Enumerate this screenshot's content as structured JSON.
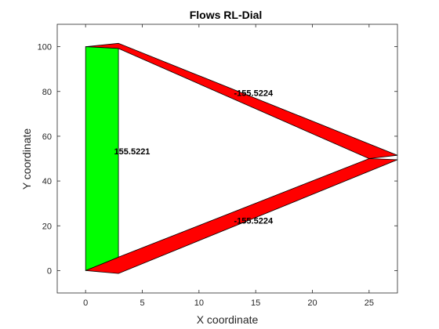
{
  "chart_data": {
    "type": "polygon-flow",
    "title": "Flows RL-Dial",
    "xlabel": "X coordinate",
    "ylabel": "Y coordinate",
    "xlim": [
      -2.5,
      27.5
    ],
    "ylim": [
      -10,
      110
    ],
    "xticks": [
      0,
      5,
      10,
      15,
      20,
      25
    ],
    "yticks": [
      0,
      20,
      40,
      60,
      80,
      100
    ],
    "grid": false,
    "flows": [
      {
        "id": "top-link",
        "color": "#ff0000",
        "label": "-155.5224",
        "label_pos": [
          14.8,
          78
        ],
        "polygon": [
          [
            0,
            100
          ],
          [
            2.9,
            101.5
          ],
          [
            27.5,
            51.5
          ],
          [
            25,
            50
          ],
          [
            2.9,
            99.2
          ]
        ]
      },
      {
        "id": "bottom-link",
        "color": "#ff0000",
        "label": "-155.5224",
        "label_pos": [
          14.8,
          21
        ],
        "polygon": [
          [
            0,
            0
          ],
          [
            2.9,
            -1.3
          ],
          [
            27.5,
            49.5
          ],
          [
            25,
            50
          ],
          [
            2.9,
            6
          ]
        ]
      },
      {
        "id": "left-link",
        "color": "#00ff00",
        "label": "155.5221",
        "label_pos": [
          4.1,
          52
        ],
        "polygon": [
          [
            0,
            0
          ],
          [
            2.9,
            6
          ],
          [
            2.9,
            99.2
          ],
          [
            0,
            100
          ]
        ]
      }
    ]
  }
}
